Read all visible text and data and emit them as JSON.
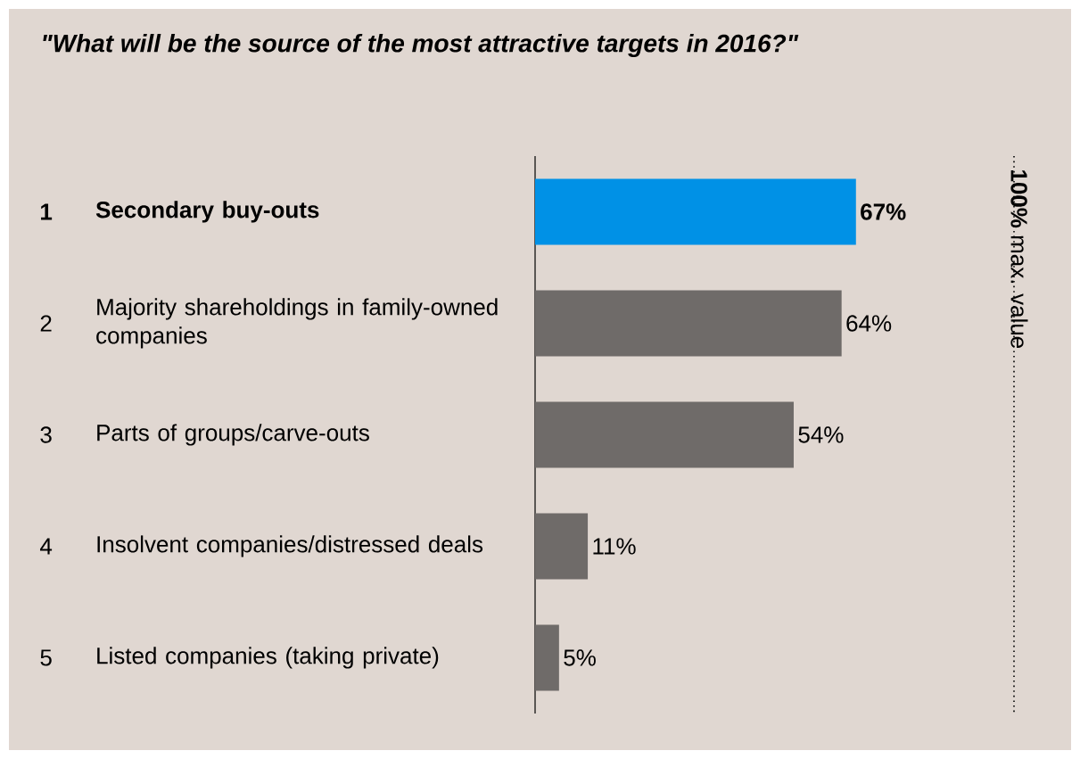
{
  "chart_data": {
    "type": "bar",
    "orientation": "horizontal",
    "title": "\"What will be the source of the most attractive targets in 2016?\"",
    "categories": [
      "Secondary buy-outs",
      "Majority shareholdings in family-owned companies",
      "Parts of groups/carve-outs",
      "Insolvent companies/distressed deals",
      "Listed companies (taking private)"
    ],
    "values": [
      67,
      64,
      54,
      11,
      5
    ],
    "colors": [
      "#0091e6",
      "#6f6b69",
      "#6f6b69",
      "#6f6b69",
      "#6f6b69"
    ],
    "value_labels": [
      "67%",
      "64%",
      "54%",
      "11%",
      "5%"
    ],
    "xlim": [
      0,
      100
    ],
    "tick_labels": "y",
    "ref_lines": [
      {
        "axis": "x",
        "value": 100,
        "label": "**100%** max. value",
        "line_style": "dotted"
      }
    ],
    "annotations": [
      "1",
      "2",
      "3",
      "4",
      "5"
    ]
  }
}
